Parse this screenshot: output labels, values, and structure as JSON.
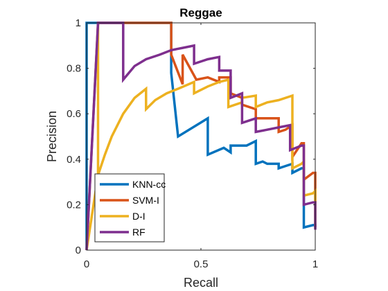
{
  "chart_data": {
    "type": "line",
    "title": "Reggae",
    "xlabel": "Recall",
    "ylabel": "Precision",
    "xlim": [
      0,
      1
    ],
    "ylim": [
      0,
      1
    ],
    "xticks": [
      0,
      0.5,
      1
    ],
    "xtick_labels": [
      "0",
      "0.5",
      "1"
    ],
    "yticks": [
      0,
      0.2,
      0.4,
      0.6,
      0.8,
      1
    ],
    "ytick_labels": [
      "0",
      "0.2",
      "0.4",
      "0.6",
      "0.8",
      "1"
    ],
    "grid": false,
    "legend_position": "bottom-left",
    "series": [
      {
        "name": "KNN-cc",
        "color": "#0072BD",
        "x": [
          0.0,
          0.0,
          0.37,
          0.37,
          0.4,
          0.53,
          0.53,
          0.6,
          0.63,
          0.63,
          0.7,
          0.74,
          0.74,
          0.77,
          0.79,
          0.79,
          0.84,
          0.84,
          0.87,
          0.9,
          0.9,
          0.94,
          0.95,
          0.95,
          0.99,
          1.0,
          1.0
        ],
        "y": [
          0.0,
          1.0,
          1.0,
          0.78,
          0.5,
          0.58,
          0.42,
          0.45,
          0.43,
          0.46,
          0.46,
          0.48,
          0.38,
          0.39,
          0.38,
          0.38,
          0.38,
          0.36,
          0.37,
          0.38,
          0.34,
          0.36,
          0.36,
          0.1,
          0.11,
          0.11,
          0.1
        ]
      },
      {
        "name": "SVM-I",
        "color": "#D95319",
        "x": [
          0.0,
          0.05,
          0.37,
          0.37,
          0.42,
          0.42,
          0.48,
          0.53,
          0.58,
          0.58,
          0.63,
          0.63,
          0.68,
          0.68,
          0.74,
          0.74,
          0.79,
          0.84,
          0.84,
          0.87,
          0.9,
          0.9,
          0.94,
          0.95,
          0.95,
          0.99,
          1.0,
          1.0
        ],
        "y": [
          0.0,
          1.0,
          1.0,
          0.86,
          0.73,
          0.86,
          0.75,
          0.76,
          0.74,
          0.76,
          0.76,
          0.69,
          0.67,
          0.64,
          0.62,
          0.58,
          0.58,
          0.58,
          0.52,
          0.53,
          0.55,
          0.41,
          0.47,
          0.47,
          0.31,
          0.34,
          0.34,
          0.21
        ]
      },
      {
        "name": "D-I",
        "color": "#EDB120",
        "x": [
          0.0,
          0.05,
          0.05,
          0.05,
          0.08,
          0.11,
          0.16,
          0.21,
          0.26,
          0.26,
          0.3,
          0.35,
          0.4,
          0.47,
          0.47,
          0.53,
          0.58,
          0.62,
          0.62,
          0.68,
          0.68,
          0.74,
          0.74,
          0.79,
          0.84,
          0.9,
          0.9,
          0.94,
          0.95,
          0.95,
          0.99,
          1.0,
          1.0
        ],
        "y": [
          0.0,
          0.33,
          1.0,
          0.33,
          0.42,
          0.5,
          0.6,
          0.67,
          0.71,
          0.62,
          0.66,
          0.69,
          0.71,
          0.74,
          0.69,
          0.72,
          0.74,
          0.75,
          0.63,
          0.65,
          0.67,
          0.68,
          0.63,
          0.65,
          0.66,
          0.68,
          0.36,
          0.38,
          0.39,
          0.24,
          0.25,
          0.26,
          0.1
        ]
      },
      {
        "name": "RF",
        "color": "#7E2F8E",
        "x": [
          0.0,
          0.05,
          0.16,
          0.16,
          0.21,
          0.26,
          0.32,
          0.37,
          0.42,
          0.47,
          0.47,
          0.53,
          0.58,
          0.58,
          0.63,
          0.63,
          0.68,
          0.68,
          0.74,
          0.74,
          0.79,
          0.84,
          0.89,
          0.89,
          0.94,
          0.95,
          0.95,
          0.99,
          1.0,
          1.0
        ],
        "y": [
          0.0,
          1.0,
          1.0,
          0.75,
          0.81,
          0.84,
          0.86,
          0.88,
          0.89,
          0.9,
          0.82,
          0.84,
          0.85,
          0.79,
          0.79,
          0.67,
          0.69,
          0.56,
          0.58,
          0.52,
          0.53,
          0.54,
          0.55,
          0.44,
          0.46,
          0.46,
          0.2,
          0.21,
          0.21,
          0.09
        ]
      }
    ]
  }
}
